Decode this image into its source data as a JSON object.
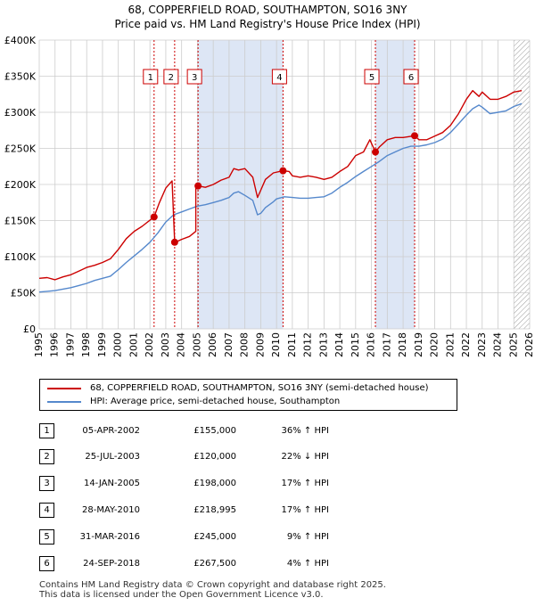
{
  "title_line1": "68, COPPERFIELD ROAD, SOUTHAMPTON, SO16 3NY",
  "title_line2": "Price paid vs. HM Land Registry's House Price Index (HPI)",
  "colors": {
    "property": "#cc0000",
    "hpi": "#5588cc",
    "shade": "#dde6f5",
    "grid": "#cccccc"
  },
  "legend": {
    "property_label": "68, COPPERFIELD ROAD, SOUTHAMPTON, SO16 3NY (semi-detached house)",
    "hpi_label": "HPI: Average price, semi-detached house, Southampton"
  },
  "transactions": [
    {
      "num": "1",
      "date": "05-APR-2002",
      "price": "£155,000",
      "hpi": "36% ↑ HPI"
    },
    {
      "num": "2",
      "date": "25-JUL-2003",
      "price": "£120,000",
      "hpi": "22% ↓ HPI"
    },
    {
      "num": "3",
      "date": "14-JAN-2005",
      "price": "£198,000",
      "hpi": "17% ↑ HPI"
    },
    {
      "num": "4",
      "date": "28-MAY-2010",
      "price": "£218,995",
      "hpi": "17% ↑ HPI"
    },
    {
      "num": "5",
      "date": "31-MAR-2016",
      "price": "£245,000",
      "hpi": "9% ↑ HPI"
    },
    {
      "num": "6",
      "date": "24-SEP-2018",
      "price": "£267,500",
      "hpi": "4% ↑ HPI"
    }
  ],
  "footer_line1": "Contains HM Land Registry data © Crown copyright and database right 2025.",
  "footer_line2": "This data is licensed under the Open Government Licence v3.0.",
  "chart_data": {
    "type": "line",
    "title": "Price paid vs. HM Land Registry's House Price Index (HPI)",
    "xlim": [
      1995,
      2026
    ],
    "ylim": [
      0,
      400000
    ],
    "x_ticks": [
      1995,
      1996,
      1997,
      1998,
      1999,
      2000,
      2001,
      2002,
      2003,
      2004,
      2005,
      2006,
      2007,
      2008,
      2009,
      2010,
      2011,
      2012,
      2013,
      2014,
      2015,
      2016,
      2017,
      2018,
      2019,
      2020,
      2021,
      2022,
      2023,
      2024,
      2025,
      2026
    ],
    "y_ticks": [
      {
        "value": 0,
        "label": "£0"
      },
      {
        "value": 50000,
        "label": "£50K"
      },
      {
        "value": 100000,
        "label": "£100K"
      },
      {
        "value": 150000,
        "label": "£150K"
      },
      {
        "value": 200000,
        "label": "£200K"
      },
      {
        "value": 250000,
        "label": "£250K"
      },
      {
        "value": 300000,
        "label": "£300K"
      },
      {
        "value": 350000,
        "label": "£350K"
      },
      {
        "value": 400000,
        "label": "£400K"
      }
    ],
    "grid": true,
    "shaded_ranges": [
      [
        2005.04,
        2010.41
      ],
      [
        2016.25,
        2018.73
      ]
    ],
    "hatched_range": [
      2025.0,
      2026
    ],
    "series": [
      {
        "name": "68, COPPERFIELD ROAD, SOUTHAMPTON, SO16 3NY (semi-detached house)",
        "color": "#cc0000",
        "x": [
          1995,
          1995.5,
          1996,
          1996.5,
          1997,
          1997.5,
          1998,
          1998.5,
          1999,
          1999.5,
          2000,
          2000.5,
          2001,
          2001.5,
          2002.26,
          2002.6,
          2003,
          2003.4,
          2003.56,
          2003.6,
          2004,
          2004.5,
          2004.9,
          2004.9,
          2005.04,
          2005.5,
          2006,
          2006.5,
          2007,
          2007.3,
          2007.6,
          2008,
          2008.5,
          2008.8,
          2009,
          2009.3,
          2009.8,
          2010.41,
          2010.8,
          2011,
          2011.5,
          2012,
          2012.5,
          2013,
          2013.5,
          2014,
          2014.5,
          2015,
          2015.5,
          2015.9,
          2016.25,
          2016.5,
          2017,
          2017.5,
          2018,
          2018.73,
          2019,
          2019.5,
          2020,
          2020.5,
          2021,
          2021.5,
          2022,
          2022.4,
          2022.8,
          2023,
          2023.5,
          2024,
          2024.5,
          2025,
          2025.5
        ],
        "y": [
          70000,
          71000,
          68000,
          72000,
          75000,
          80000,
          85000,
          88000,
          92000,
          97000,
          110000,
          125000,
          135000,
          142000,
          155000,
          175000,
          195000,
          205000,
          120000,
          120000,
          124000,
          128000,
          135000,
          200000,
          198000,
          196000,
          200000,
          206000,
          210000,
          222000,
          220000,
          222000,
          210000,
          182000,
          192000,
          207000,
          216000,
          218995,
          218000,
          212000,
          210000,
          212000,
          210000,
          207000,
          210000,
          218000,
          225000,
          240000,
          245000,
          262000,
          245000,
          252000,
          262000,
          265000,
          265000,
          267500,
          262000,
          262000,
          267000,
          272000,
          282000,
          298000,
          318000,
          330000,
          322000,
          328000,
          318000,
          318000,
          322000,
          328000,
          330000
        ]
      },
      {
        "name": "HPI: Average price, semi-detached house, Southampton",
        "color": "#5588cc",
        "x": [
          1995,
          1995.5,
          1996,
          1996.5,
          1997,
          1997.5,
          1998,
          1998.5,
          1999,
          1999.5,
          2000,
          2000.5,
          2001,
          2001.5,
          2002,
          2002.5,
          2003,
          2003.5,
          2004,
          2004.5,
          2005,
          2005.5,
          2006,
          2006.5,
          2007,
          2007.3,
          2007.6,
          2008,
          2008.5,
          2008.8,
          2009,
          2009.3,
          2009.8,
          2010,
          2010.5,
          2011,
          2011.5,
          2012,
          2012.5,
          2013,
          2013.5,
          2014,
          2014.5,
          2015,
          2015.5,
          2016,
          2016.5,
          2017,
          2017.5,
          2018,
          2018.5,
          2019,
          2019.5,
          2020,
          2020.5,
          2021,
          2021.5,
          2022,
          2022.4,
          2022.8,
          2023,
          2023.5,
          2024,
          2024.5,
          2025,
          2025.5
        ],
        "y": [
          51000,
          52000,
          53000,
          55000,
          57000,
          60000,
          63000,
          67000,
          70000,
          73000,
          82000,
          92000,
          101000,
          110000,
          120000,
          133000,
          148000,
          158000,
          162000,
          166000,
          170000,
          172000,
          175000,
          178000,
          182000,
          188000,
          190000,
          185000,
          178000,
          158000,
          160000,
          168000,
          176000,
          180000,
          183000,
          182000,
          181000,
          181000,
          182000,
          183000,
          188000,
          196000,
          203000,
          211000,
          218000,
          225000,
          232000,
          240000,
          245000,
          250000,
          253000,
          253000,
          255000,
          258000,
          263000,
          272000,
          284000,
          296000,
          305000,
          310000,
          307000,
          298000,
          300000,
          302000,
          308000,
          312000
        ]
      }
    ],
    "sales": [
      {
        "label": "1",
        "x": 2002.26,
        "y": 155000
      },
      {
        "label": "2",
        "x": 2003.56,
        "y": 120000
      },
      {
        "label": "3",
        "x": 2005.04,
        "y": 198000
      },
      {
        "label": "4",
        "x": 2010.41,
        "y": 218995
      },
      {
        "label": "5",
        "x": 2016.25,
        "y": 245000
      },
      {
        "label": "6",
        "x": 2018.73,
        "y": 267500
      }
    ]
  }
}
